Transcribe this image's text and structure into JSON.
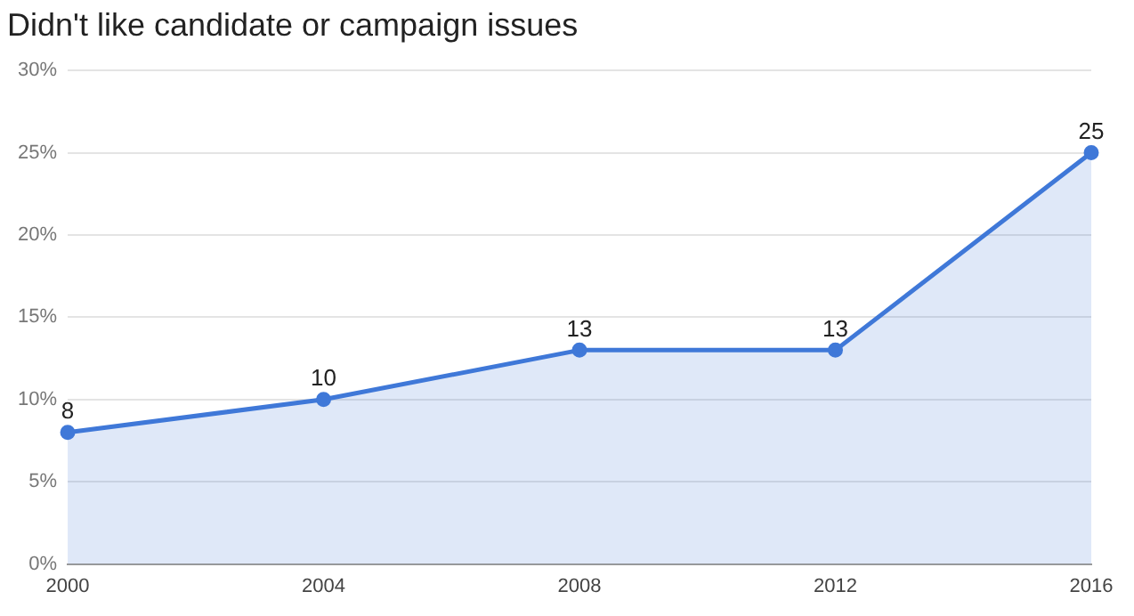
{
  "chart_data": {
    "type": "area",
    "title": "Didn't like candidate or campaign issues",
    "categories": [
      "2000",
      "2004",
      "2008",
      "2012",
      "2016"
    ],
    "series": [
      {
        "color": "#3f78d8",
        "values": [
          8,
          10,
          13,
          13,
          25
        ]
      }
    ],
    "ylim": [
      0,
      30
    ],
    "yticks": [
      {
        "value": 0,
        "label": "0%"
      },
      {
        "value": 5,
        "label": "5%"
      },
      {
        "value": 10,
        "label": "10%"
      },
      {
        "value": 15,
        "label": "15%"
      },
      {
        "value": 20,
        "label": "20%"
      },
      {
        "value": 25,
        "label": "25%"
      },
      {
        "value": 30,
        "label": "30%"
      }
    ],
    "grid": "y",
    "marker": "circle",
    "line_style": "solid",
    "data_labels": true,
    "legend": false
  }
}
